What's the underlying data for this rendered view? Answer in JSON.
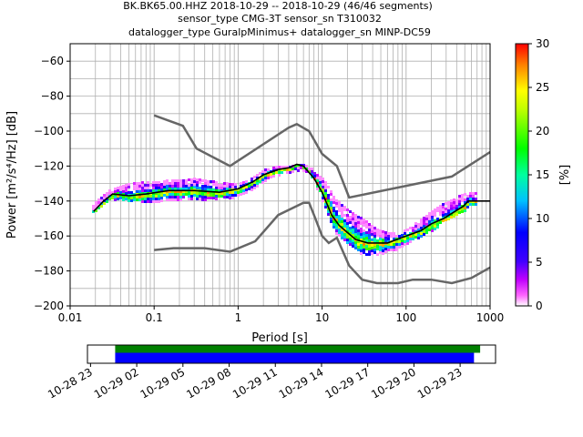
{
  "chart_data": [
    {
      "type": "heatmap",
      "title": [
        "BK.BK65.00.HHZ   2018-10-29 -- 2018-10-29  (46/46 segments)",
        "sensor_type CMG-3T sensor_sn T310032",
        "datalogger_type GuralpMinimus+ datalogger_sn MINP-DC59"
      ],
      "xlabel": "Period [s]",
      "ylabel": "Power [m²/s⁴/Hz] [dB]",
      "x_scale": "log",
      "xlim": [
        0.01,
        1000
      ],
      "ylim": [
        -200,
        -50
      ],
      "xticks": [
        "0.01",
        "0.1",
        "1",
        "10",
        "100",
        "1000"
      ],
      "yticks": [
        "−200",
        "−180",
        "−160",
        "−140",
        "−120",
        "−100",
        "−80",
        "−60"
      ],
      "grid": true,
      "noise_models": [
        {
          "points": [
            [
              0.1,
              -91
            ],
            [
              0.22,
              -97
            ],
            [
              0.32,
              -110
            ],
            [
              0.8,
              -120
            ],
            [
              4,
              -98
            ],
            [
              5,
              -96
            ],
            [
              7,
              -100
            ],
            [
              10,
              -113
            ],
            [
              15,
              -120
            ],
            [
              21,
              -138
            ],
            [
              350,
              -126
            ],
            [
              1000,
              -112
            ]
          ]
        },
        {
          "points": [
            [
              0.1,
              -168
            ],
            [
              0.17,
              -167
            ],
            [
              0.4,
              -167
            ],
            [
              0.8,
              -169
            ],
            [
              1.6,
              -163
            ],
            [
              3,
              -148
            ],
            [
              6,
              -141
            ],
            [
              7,
              -141
            ],
            [
              8,
              -148
            ],
            [
              10,
              -160
            ],
            [
              12,
              -164
            ],
            [
              15,
              -161
            ],
            [
              21,
              -177
            ],
            [
              30,
              -185
            ],
            [
              45,
              -187
            ],
            [
              80,
              -187
            ],
            [
              120,
              -185
            ],
            [
              200,
              -185
            ],
            [
              350,
              -187
            ],
            [
              600,
              -184
            ],
            [
              1000,
              -178
            ]
          ]
        }
      ],
      "median_curve": [
        [
          0.019,
          -146
        ],
        [
          0.025,
          -140
        ],
        [
          0.032,
          -136
        ],
        [
          0.05,
          -137
        ],
        [
          0.08,
          -136
        ],
        [
          0.15,
          -134
        ],
        [
          0.3,
          -134
        ],
        [
          0.6,
          -135
        ],
        [
          1,
          -133
        ],
        [
          1.5,
          -129
        ],
        [
          2,
          -125
        ],
        [
          3,
          -122
        ],
        [
          4,
          -121
        ],
        [
          5,
          -119
        ],
        [
          6,
          -120
        ],
        [
          8,
          -127
        ],
        [
          10,
          -135
        ],
        [
          13,
          -148
        ],
        [
          16,
          -154
        ],
        [
          20,
          -158
        ],
        [
          25,
          -162
        ],
        [
          35,
          -164
        ],
        [
          60,
          -164
        ],
        [
          100,
          -160
        ],
        [
          150,
          -157
        ],
        [
          200,
          -153
        ],
        [
          280,
          -150
        ],
        [
          380,
          -146
        ],
        [
          480,
          -143
        ],
        [
          550,
          -140
        ],
        [
          1000,
          -140
        ]
      ],
      "psd_scatter_band": {
        "periods": [
          0.018,
          0.02,
          0.025,
          0.03,
          0.04,
          0.05,
          0.07,
          0.1,
          0.14,
          0.2,
          0.3,
          0.4,
          0.6,
          0.8,
          1,
          1.4,
          2,
          2.8,
          4,
          5,
          6,
          7,
          8,
          10,
          12,
          14,
          17,
          20,
          25,
          30,
          40,
          50,
          60,
          80,
          100,
          130,
          170,
          220,
          280,
          350,
          450,
          550,
          650
        ],
        "power_min_db": [
          -147,
          -145,
          -141,
          -139,
          -139,
          -140,
          -140,
          -140,
          -140,
          -139,
          -139,
          -139,
          -138,
          -138,
          -137,
          -133,
          -128,
          -125,
          -124,
          -122,
          -122,
          -124,
          -130,
          -140,
          -151,
          -158,
          -162,
          -165,
          -168,
          -170,
          -170,
          -170,
          -168,
          -167,
          -164,
          -161,
          -158,
          -155,
          -151,
          -149,
          -146,
          -143,
          -142
        ],
        "power_max_db": [
          -143,
          -140,
          -136,
          -133,
          -131,
          -130,
          -129,
          -129,
          -128,
          -128,
          -127,
          -128,
          -129,
          -130,
          -130,
          -127,
          -122,
          -120,
          -120,
          -119,
          -119,
          -120,
          -124,
          -127,
          -133,
          -139,
          -142,
          -145,
          -148,
          -150,
          -155,
          -157,
          -158,
          -158,
          -156,
          -152,
          -148,
          -144,
          -141,
          -139,
          -136,
          -135,
          -135
        ]
      },
      "colorbar": {
        "label": "[%]",
        "range": [
          0,
          30
        ],
        "ticks": [
          "0",
          "5",
          "10",
          "15",
          "20",
          "25",
          "30"
        ]
      }
    },
    {
      "type": "timeline",
      "xticks": [
        "10-28 23",
        "10-29 02",
        "10-29 05",
        "10-29 08",
        "10-29 11",
        "10-29 14",
        "10-29 17",
        "10-29 20",
        "10-29 23"
      ],
      "bars": [
        {
          "color": "#008000",
          "start_hours": 1.6,
          "end_hours": 25.3
        },
        {
          "color": "#0000ff",
          "start_hours": 1.6,
          "end_hours": 24.9
        }
      ],
      "xlim_hours": [
        -0.2,
        26.3
      ]
    }
  ],
  "colors": {
    "noise_model": "#666666",
    "median": "#000000",
    "timeline_top": "#008000",
    "timeline_bottom": "#0000ff"
  }
}
